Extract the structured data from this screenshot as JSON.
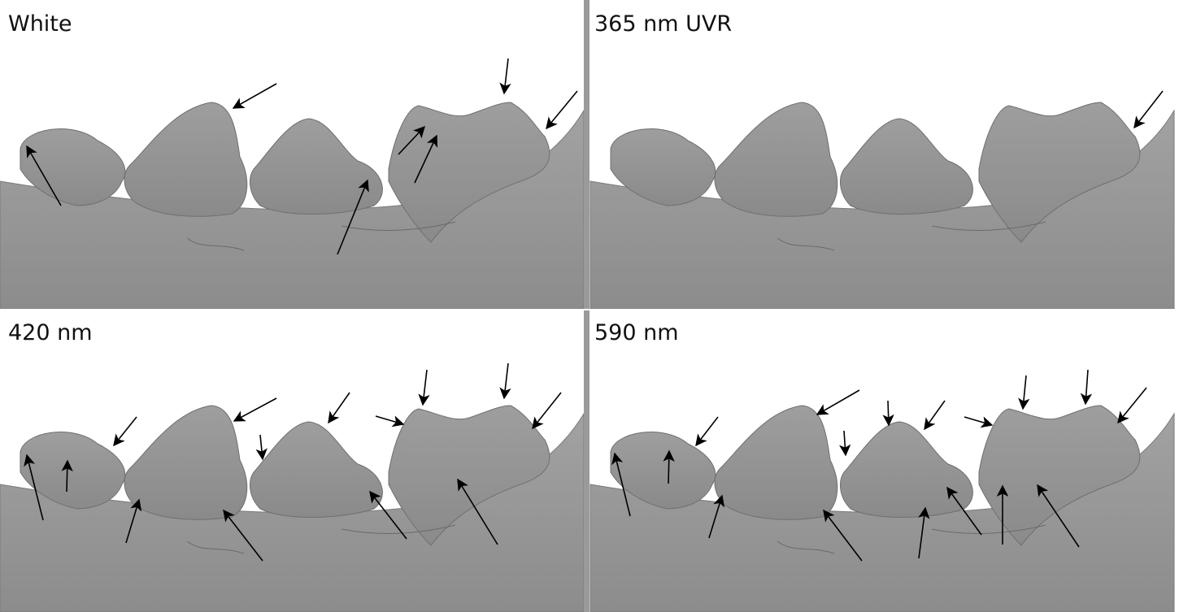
{
  "panels": [
    {
      "label": "White"
    },
    {
      "label": "365 nm UVR"
    },
    {
      "label": "420 nm"
    },
    {
      "label": "590 nm"
    }
  ]
}
